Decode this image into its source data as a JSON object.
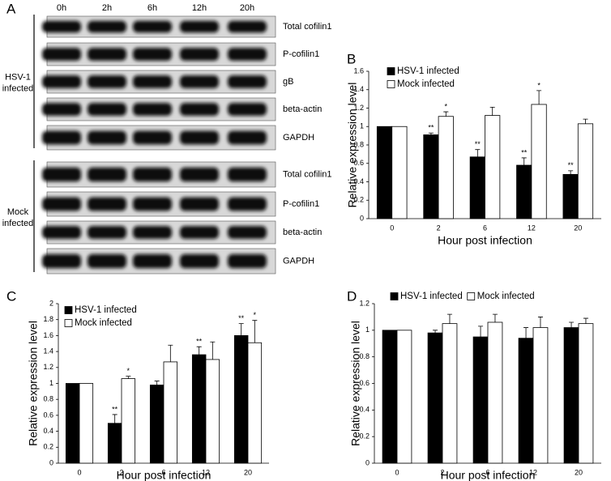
{
  "blot": {
    "panel": "A",
    "time_points": [
      "0h",
      "2h",
      "6h",
      "12h",
      "20h"
    ],
    "groups": [
      {
        "label": "HSV-1 infected",
        "rows": [
          "Total cofilin1",
          "P-cofilin1",
          "gB",
          "beta-actin",
          "GAPDH"
        ]
      },
      {
        "label": "Mock infected",
        "rows": [
          "Total cofilin1",
          "P-cofilin1",
          "beta-actin",
          "GAPDH"
        ]
      }
    ]
  },
  "chart_data": [
    {
      "type": "bar",
      "panel": "B",
      "xlabel": "Hour post infection",
      "ylabel": "Relative expression level",
      "categories": [
        "0",
        "2",
        "6",
        "12",
        "20"
      ],
      "ylim": [
        0,
        1.6
      ],
      "yticks": [
        0,
        0.2,
        0.4,
        0.6,
        0.8,
        1,
        1.2,
        1.4,
        1.6
      ],
      "legend": "upper left",
      "series": [
        {
          "name": "HSV-1 infected",
          "color": "#000000",
          "values": [
            1,
            0.91,
            0.67,
            0.58,
            0.48
          ],
          "errors": [
            0,
            0.02,
            0.08,
            0.08,
            0.04
          ],
          "annotations": [
            null,
            "**",
            "**",
            "**",
            "**"
          ]
        },
        {
          "name": "Mock infected",
          "color": "#ffffff",
          "values": [
            1,
            1.11,
            1.12,
            1.24,
            1.03
          ],
          "errors": [
            0,
            0.05,
            0.09,
            0.15,
            0.05
          ],
          "annotations": [
            null,
            "*",
            null,
            "*",
            null
          ]
        }
      ]
    },
    {
      "type": "bar",
      "panel": "C",
      "xlabel": "Hour post infection",
      "ylabel": "Relative expression level",
      "categories": [
        "0",
        "2",
        "6",
        "12",
        "20"
      ],
      "ylim": [
        0,
        2
      ],
      "yticks": [
        0,
        0.2,
        0.4,
        0.6,
        0.8,
        1,
        1.2,
        1.4,
        1.6,
        1.8,
        2
      ],
      "legend": "upper left",
      "series": [
        {
          "name": "HSV-1 infected",
          "color": "#000000",
          "values": [
            1,
            0.5,
            0.98,
            1.36,
            1.6
          ],
          "errors": [
            0,
            0.11,
            0.05,
            0.1,
            0.15
          ],
          "annotations": [
            null,
            "**",
            null,
            "**",
            "**"
          ]
        },
        {
          "name": "Mock infected",
          "color": "#ffffff",
          "values": [
            1,
            1.06,
            1.27,
            1.3,
            1.51
          ],
          "errors": [
            0,
            0.03,
            0.21,
            0.22,
            0.28
          ],
          "annotations": [
            null,
            "*",
            null,
            null,
            "*"
          ]
        }
      ]
    },
    {
      "type": "bar",
      "panel": "D",
      "xlabel": "Hour post infection",
      "ylabel": "Relative expression level",
      "categories": [
        "0",
        "2",
        "6",
        "12",
        "20"
      ],
      "ylim": [
        0,
        1.2
      ],
      "yticks": [
        0,
        0.2,
        0.4,
        0.6,
        0.8,
        1,
        1.2
      ],
      "legend": "top",
      "series": [
        {
          "name": "HSV-1 infected",
          "color": "#000000",
          "values": [
            1,
            0.98,
            0.95,
            0.94,
            1.02
          ],
          "errors": [
            0,
            0.02,
            0.08,
            0.08,
            0.04
          ]
        },
        {
          "name": "Mock infected",
          "color": "#ffffff",
          "values": [
            1,
            1.05,
            1.06,
            1.02,
            1.05
          ],
          "errors": [
            0,
            0.07,
            0.06,
            0.08,
            0.04
          ]
        }
      ]
    }
  ]
}
